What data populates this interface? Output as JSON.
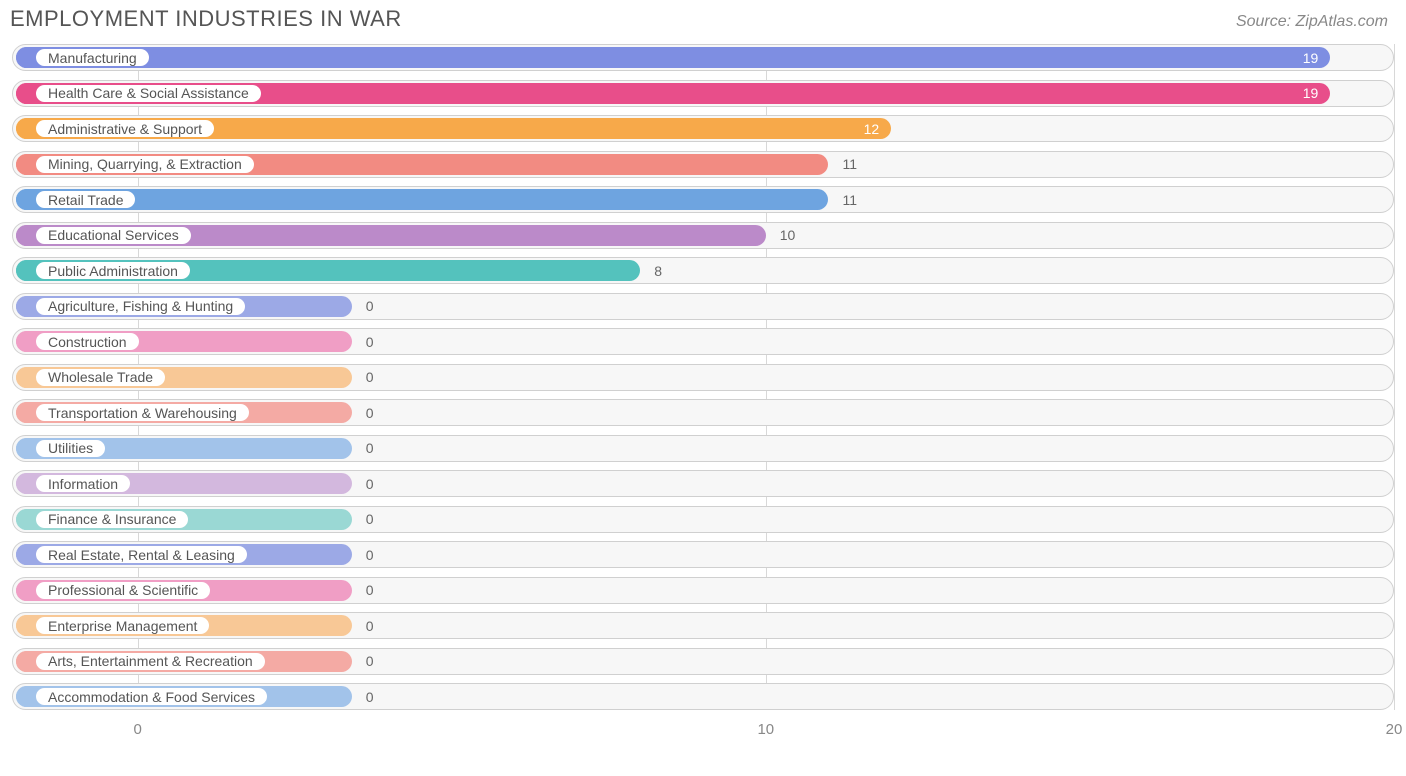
{
  "header": {
    "title": "EMPLOYMENT INDUSTRIES IN WAR",
    "source": "Source: ZipAtlas.com"
  },
  "chart": {
    "type": "horizontal-bar",
    "xmin": -2,
    "xmax": 20,
    "xticks": [
      0,
      10,
      20
    ],
    "track_bg": "#f7f7f7",
    "track_border": "#d0d0d0",
    "grid_color": "#d8d8d8",
    "label_fontsize": 14,
    "value_fontsize": 14,
    "title_color": "#555555",
    "axis_text_color": "#888888",
    "zero_bar_end_x": 3.4,
    "rows": [
      {
        "label": "Manufacturing",
        "value": 19,
        "color": "#7e8ee2",
        "value_inside": true,
        "value_text_color": "#ffffff"
      },
      {
        "label": "Health Care & Social Assistance",
        "value": 19,
        "color": "#e84e8a",
        "value_inside": true,
        "value_text_color": "#ffffff"
      },
      {
        "label": "Administrative & Support",
        "value": 12,
        "color": "#f7a94a",
        "value_inside": true,
        "value_text_color": "#ffffff"
      },
      {
        "label": "Mining, Quarrying, & Extraction",
        "value": 11,
        "color": "#f28b82",
        "value_inside": false,
        "value_text_color": "#666666"
      },
      {
        "label": "Retail Trade",
        "value": 11,
        "color": "#6ea4e0",
        "value_inside": false,
        "value_text_color": "#666666"
      },
      {
        "label": "Educational Services",
        "value": 10,
        "color": "#bb8ac9",
        "value_inside": false,
        "value_text_color": "#666666"
      },
      {
        "label": "Public Administration",
        "value": 8,
        "color": "#54c2bd",
        "value_inside": false,
        "value_text_color": "#666666"
      },
      {
        "label": "Agriculture, Fishing & Hunting",
        "value": 0,
        "color": "#9ca9e6",
        "value_inside": false,
        "value_text_color": "#666666"
      },
      {
        "label": "Construction",
        "value": 0,
        "color": "#f09ec5",
        "value_inside": false,
        "value_text_color": "#666666"
      },
      {
        "label": "Wholesale Trade",
        "value": 0,
        "color": "#f8c896",
        "value_inside": false,
        "value_text_color": "#666666"
      },
      {
        "label": "Transportation & Warehousing",
        "value": 0,
        "color": "#f4aaa4",
        "value_inside": false,
        "value_text_color": "#666666"
      },
      {
        "label": "Utilities",
        "value": 0,
        "color": "#a2c3ea",
        "value_inside": false,
        "value_text_color": "#666666"
      },
      {
        "label": "Information",
        "value": 0,
        "color": "#d3b8de",
        "value_inside": false,
        "value_text_color": "#666666"
      },
      {
        "label": "Finance & Insurance",
        "value": 0,
        "color": "#9ad8d4",
        "value_inside": false,
        "value_text_color": "#666666"
      },
      {
        "label": "Real Estate, Rental & Leasing",
        "value": 0,
        "color": "#9ca9e6",
        "value_inside": false,
        "value_text_color": "#666666"
      },
      {
        "label": "Professional & Scientific",
        "value": 0,
        "color": "#f09ec5",
        "value_inside": false,
        "value_text_color": "#666666"
      },
      {
        "label": "Enterprise Management",
        "value": 0,
        "color": "#f8c896",
        "value_inside": false,
        "value_text_color": "#666666"
      },
      {
        "label": "Arts, Entertainment & Recreation",
        "value": 0,
        "color": "#f4aaa4",
        "value_inside": false,
        "value_text_color": "#666666"
      },
      {
        "label": "Accommodation & Food Services",
        "value": 0,
        "color": "#a2c3ea",
        "value_inside": false,
        "value_text_color": "#666666"
      }
    ]
  }
}
